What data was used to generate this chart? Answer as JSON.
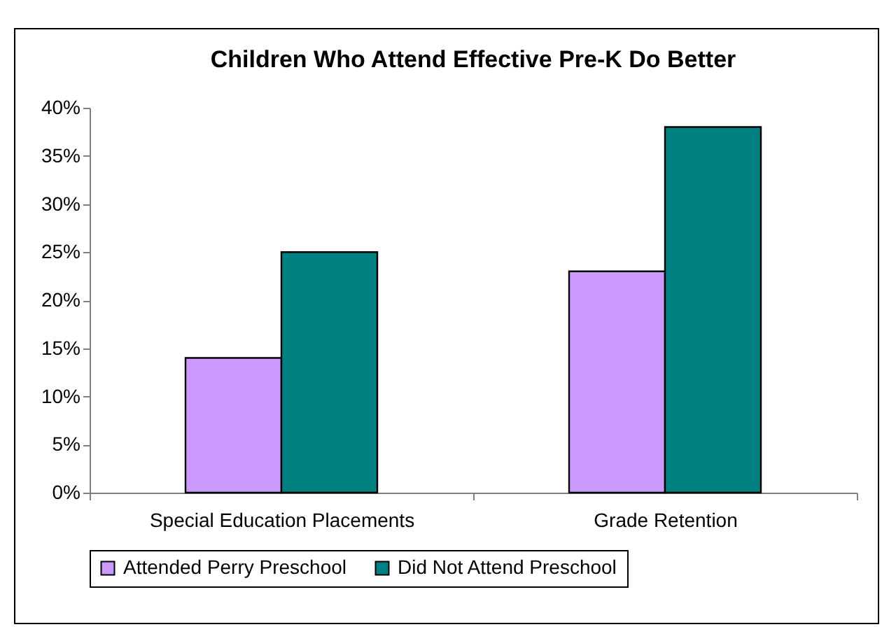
{
  "chart_data": {
    "type": "bar",
    "title": "Children Who Attend Effective Pre-K Do Better",
    "categories": [
      "Special Education Placements",
      "Grade Retention"
    ],
    "series": [
      {
        "name": "Attended Perry Preschool",
        "color": "#cc99ff",
        "values": [
          14,
          23
        ]
      },
      {
        "name": "Did Not Attend Preschool",
        "color": "#008080",
        "values": [
          25,
          38
        ]
      }
    ],
    "ylim": [
      0,
      40
    ],
    "yticks": [
      {
        "value": 0,
        "label": "0%"
      },
      {
        "value": 5,
        "label": "5%"
      },
      {
        "value": 10,
        "label": "10%"
      },
      {
        "value": 15,
        "label": "15%"
      },
      {
        "value": 20,
        "label": "20%"
      },
      {
        "value": 25,
        "label": "25%"
      },
      {
        "value": 30,
        "label": "30%"
      },
      {
        "value": 35,
        "label": "35%"
      },
      {
        "value": 40,
        "label": "40%"
      }
    ],
    "legend": "bottom"
  }
}
